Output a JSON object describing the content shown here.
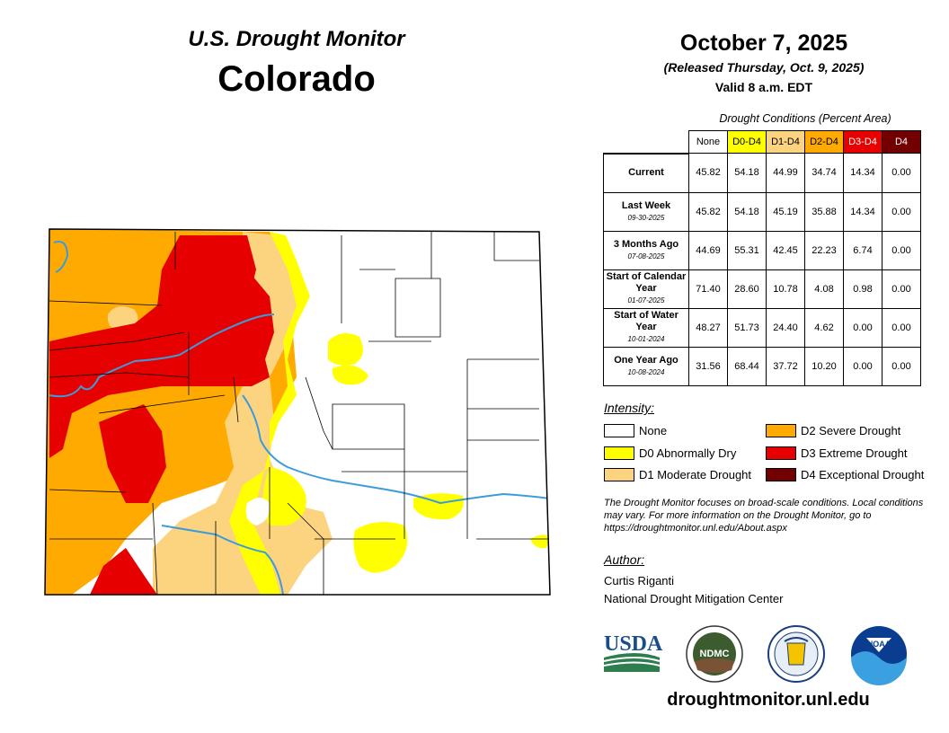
{
  "header": {
    "subtitle": "U.S. Drought Monitor",
    "state": "Colorado",
    "date": "October 7, 2025",
    "released": "(Released Thursday, Oct. 9, 2025)",
    "valid": "Valid 8 a.m. EDT"
  },
  "table": {
    "caption": "Drought Conditions (Percent Area)",
    "columns": [
      "None",
      "D0-D4",
      "D1-D4",
      "D2-D4",
      "D3-D4",
      "D4"
    ],
    "rows": [
      {
        "label": "Current",
        "date": "",
        "values": [
          "45.82",
          "54.18",
          "44.99",
          "34.74",
          "14.34",
          "0.00"
        ]
      },
      {
        "label": "Last Week",
        "date": "09-30-2025",
        "values": [
          "45.82",
          "54.18",
          "45.19",
          "35.88",
          "14.34",
          "0.00"
        ]
      },
      {
        "label": "3 Months Ago",
        "date": "07-08-2025",
        "values": [
          "44.69",
          "55.31",
          "42.45",
          "22.23",
          "6.74",
          "0.00"
        ]
      },
      {
        "label": "Start of Calendar Year",
        "date": "01-07-2025",
        "values": [
          "71.40",
          "28.60",
          "10.78",
          "4.08",
          "0.98",
          "0.00"
        ]
      },
      {
        "label": "Start of Water Year",
        "date": "10-01-2024",
        "values": [
          "48.27",
          "51.73",
          "24.40",
          "4.62",
          "0.00",
          "0.00"
        ]
      },
      {
        "label": "One Year Ago",
        "date": "10-08-2024",
        "values": [
          "31.56",
          "68.44",
          "37.72",
          "10.20",
          "0.00",
          "0.00"
        ]
      }
    ]
  },
  "legend": {
    "title": "Intensity:",
    "items": [
      {
        "label": "None",
        "color": "#ffffff"
      },
      {
        "label": "D0 Abnormally Dry",
        "color": "#ffff00"
      },
      {
        "label": "D1 Moderate Drought",
        "color": "#fcd37f"
      },
      {
        "label": "D2 Severe Drought",
        "color": "#ffaa00"
      },
      {
        "label": "D3 Extreme Drought",
        "color": "#e60000"
      },
      {
        "label": "D4 Exceptional Drought",
        "color": "#730000"
      }
    ]
  },
  "note": "The Drought Monitor focuses on broad-scale conditions. Local conditions may vary. For more information on the Drought Monitor, go to https://droughtmonitor.unl.edu/About.aspx",
  "author": {
    "heading": "Author:",
    "name": "Curtis Riganti",
    "org": "National Drought Mitigation Center"
  },
  "logos": {
    "usda": "USDA",
    "ndmc": "NDMC",
    "noaa": "NOAA"
  },
  "url": "droughtmonitor.unl.edu",
  "colors": {
    "none": "#ffffff",
    "d0": "#ffff00",
    "d1": "#fcd37f",
    "d2": "#ffaa00",
    "d3": "#e60000",
    "d4": "#730000",
    "river": "#3d9bdc"
  }
}
